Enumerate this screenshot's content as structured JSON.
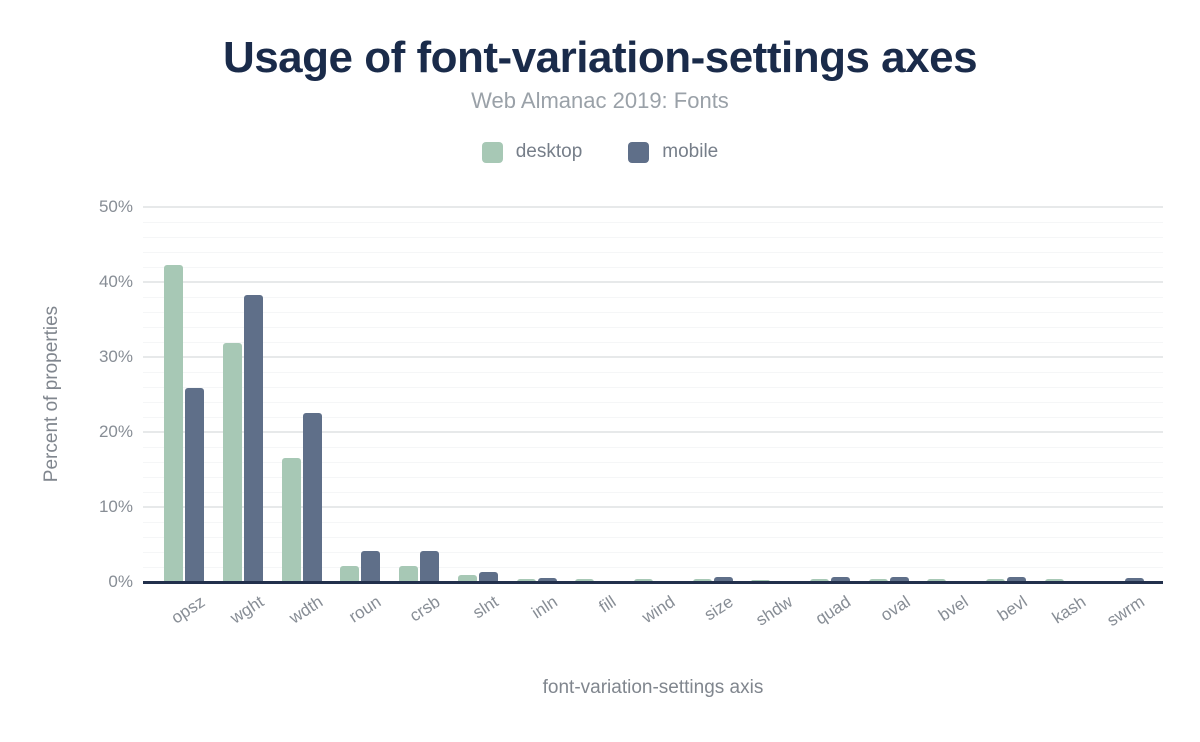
{
  "header": {
    "title": "Usage of font-variation-settings axes",
    "subtitle": "Web Almanac 2019: Fonts"
  },
  "colors": {
    "title": "#1a2b4a",
    "subtitle": "#9aa1a8",
    "axis_text": "#878d95",
    "axis_line": "#22304c",
    "major_gridline": "#e7e9ea",
    "minor_gridline": "#f5f6f7",
    "desktop": "#a7c8b5",
    "mobile": "#5f6f89"
  },
  "chart_data": {
    "type": "bar",
    "title": "Usage of font-variation-settings axes",
    "subtitle": "Web Almanac 2019: Fonts",
    "xlabel": "font-variation-settings axis",
    "ylabel": "Percent of properties",
    "ylim": [
      0,
      50
    ],
    "yticks": [
      0,
      10,
      20,
      30,
      40,
      50
    ],
    "ytick_suffix": "%",
    "minor_grid_step": 2,
    "grid": "on",
    "legend_position": "top",
    "categories": [
      "opsz",
      "wght",
      "wdth",
      "roun",
      "crsb",
      "slnt",
      "inln",
      "fill",
      "wind",
      "size",
      "shdw",
      "quad",
      "oval",
      "bvel",
      "bevl",
      "kash",
      "swrm"
    ],
    "series": [
      {
        "name": "desktop",
        "color": "#a7c8b5",
        "values": [
          42.3,
          31.9,
          16.5,
          2.1,
          2.1,
          0.9,
          0.4,
          0.4,
          0.4,
          0.4,
          0.3,
          0.4,
          0.4,
          0.4,
          0.4,
          0.4,
          0.2
        ]
      },
      {
        "name": "mobile",
        "color": "#5f6f89",
        "values": [
          25.9,
          38.3,
          22.6,
          4.1,
          4.1,
          1.3,
          0.6,
          0,
          0,
          0.7,
          0,
          0.7,
          0.7,
          0,
          0.7,
          0,
          0.6
        ]
      }
    ]
  }
}
